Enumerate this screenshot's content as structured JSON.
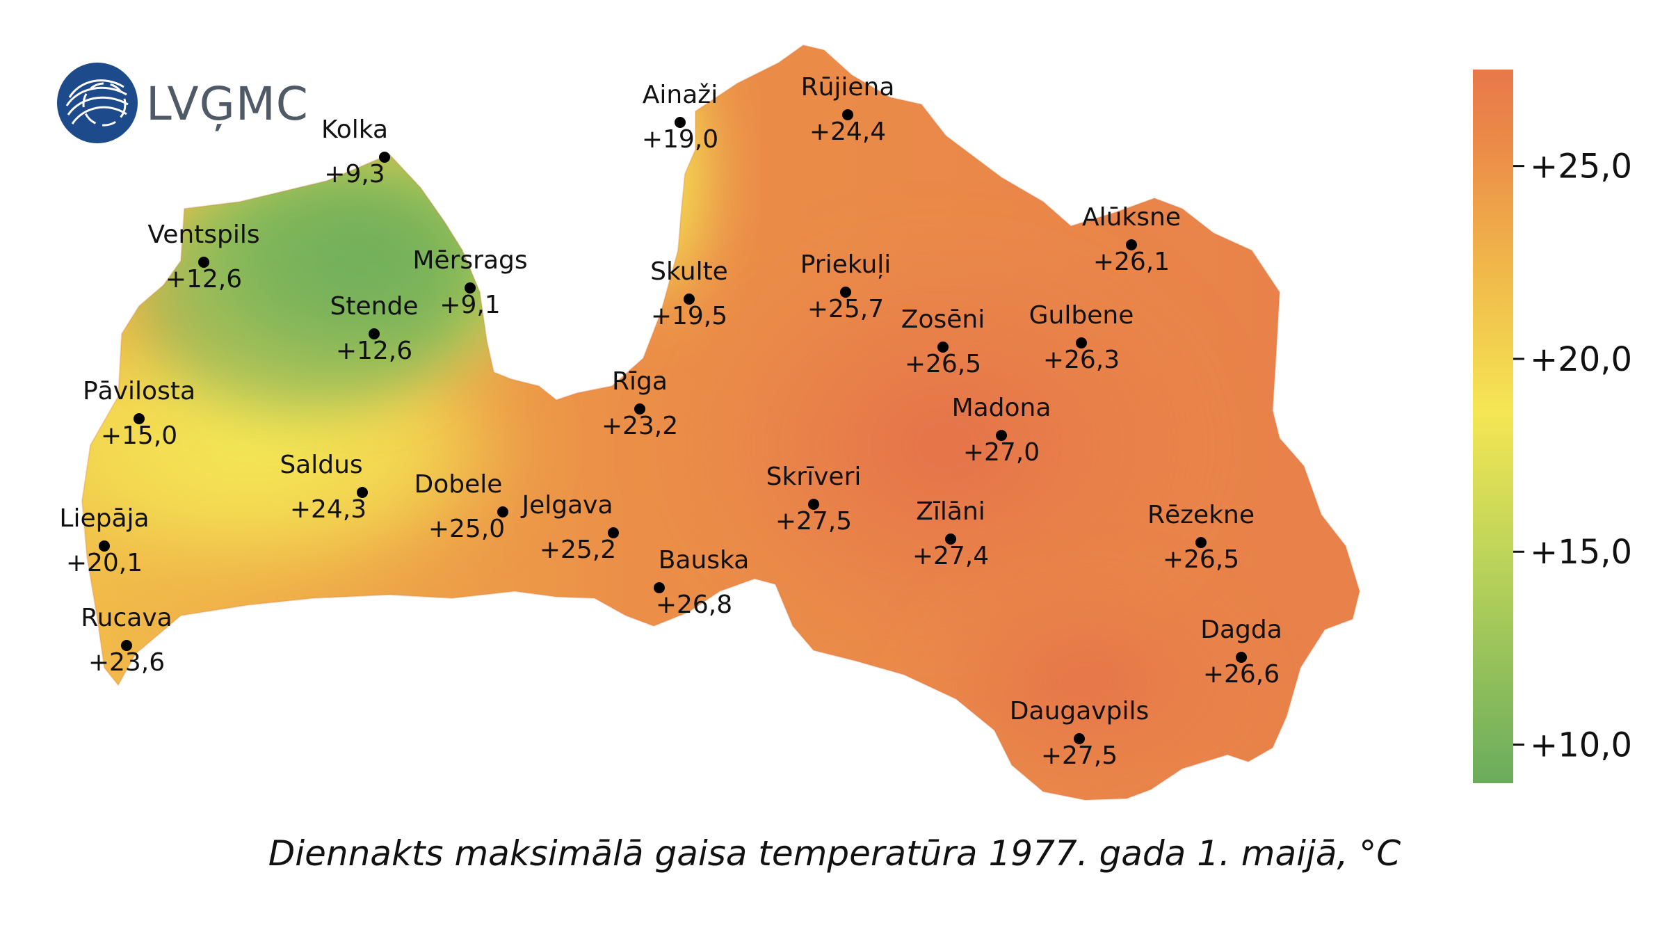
{
  "logo": {
    "text": "LVĢMC",
    "icon": "lvgmc-globe-icon",
    "color": "#1c4a8a"
  },
  "map": {
    "caption": "Diennakts maksimālā gaisa temperatūra 1977. gada 1. maijā, °C",
    "stations": [
      {
        "id": "kolka",
        "name": "Kolka",
        "value": "+9,3"
      },
      {
        "id": "ventspils",
        "name": "Ventspils",
        "value": "+12,6"
      },
      {
        "id": "mersrags",
        "name": "Mērsrags",
        "value": "+9,1"
      },
      {
        "id": "stende",
        "name": "Stende",
        "value": "+12,6"
      },
      {
        "id": "pavilosta",
        "name": "Pāvilosta",
        "value": "+15,0"
      },
      {
        "id": "saldus",
        "name": "Saldus",
        "value": "+24,3"
      },
      {
        "id": "liepaja",
        "name": "Liepāja",
        "value": "+20,1"
      },
      {
        "id": "rucava",
        "name": "Rucava",
        "value": "+23,6"
      },
      {
        "id": "dobele",
        "name": "Dobele",
        "value": "+25,0"
      },
      {
        "id": "jelgava",
        "name": "Jelgava",
        "value": "+25,2"
      },
      {
        "id": "bauska",
        "name": "Bauska",
        "value": "+26,8"
      },
      {
        "id": "riga",
        "name": "Rīga",
        "value": "+23,2"
      },
      {
        "id": "ainazi",
        "name": "Ainaži",
        "value": "+19,0"
      },
      {
        "id": "skulte",
        "name": "Skulte",
        "value": "+19,5"
      },
      {
        "id": "rujiena",
        "name": "Rūjiena",
        "value": "+24,4"
      },
      {
        "id": "priekuli",
        "name": "Priekuļi",
        "value": "+25,7"
      },
      {
        "id": "skriveri",
        "name": "Skrīveri",
        "value": "+27,5"
      },
      {
        "id": "zoseni",
        "name": "Zosēni",
        "value": "+26,5"
      },
      {
        "id": "madona",
        "name": "Madona",
        "value": "+27,0"
      },
      {
        "id": "gulbene",
        "name": "Gulbene",
        "value": "+26,3"
      },
      {
        "id": "aluksne",
        "name": "Alūksne",
        "value": "+26,1"
      },
      {
        "id": "zilani",
        "name": "Zīlāni",
        "value": "+27,4"
      },
      {
        "id": "rezekne",
        "name": "Rēzekne",
        "value": "+26,5"
      },
      {
        "id": "dagda",
        "name": "Dagda",
        "value": "+26,6"
      },
      {
        "id": "daugavpils",
        "name": "Daugavpils",
        "value": "+27,5"
      }
    ]
  },
  "legend": {
    "min": 9,
    "max": 27.5,
    "ticks": [
      {
        "value": 25,
        "label": "+25,0"
      },
      {
        "value": 20,
        "label": "+20,0"
      },
      {
        "value": 15,
        "label": "+15,0"
      },
      {
        "value": 10,
        "label": "+10,0"
      }
    ],
    "colors": {
      "cold": "#6aac5c",
      "mild": "#f5e654",
      "warm": "#f0b84a",
      "hot": "#e8784a"
    }
  }
}
